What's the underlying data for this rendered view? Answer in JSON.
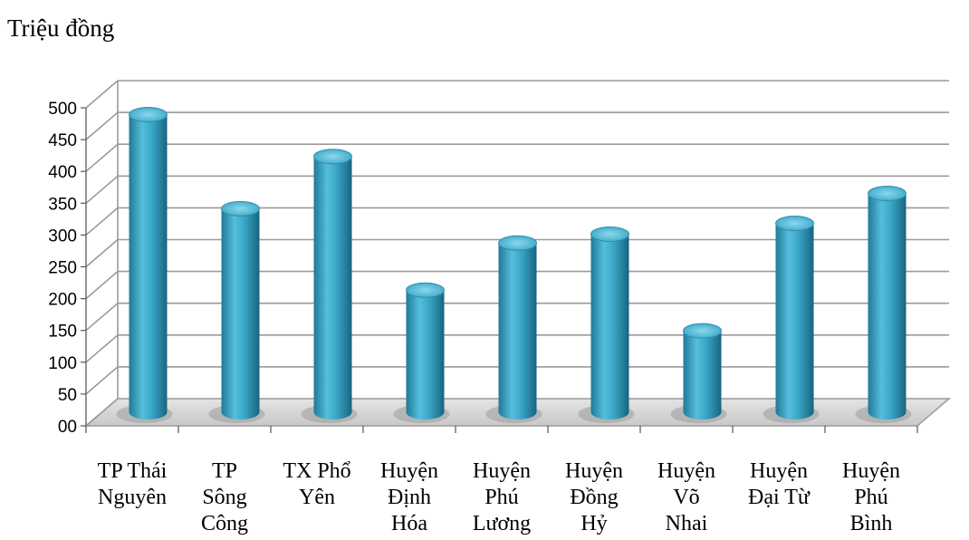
{
  "chart_data": {
    "type": "bar",
    "title": "",
    "xlabel": "",
    "ylabel": "Triệu đồng",
    "ylim": [
      0,
      500
    ],
    "ytick_labels": [
      "00",
      "50",
      "100",
      "150",
      "200",
      "250",
      "300",
      "350",
      "400",
      "450",
      "500"
    ],
    "categories": [
      [
        "TP Thái",
        "Nguyên"
      ],
      [
        "TP",
        "Sông",
        "Công"
      ],
      [
        "TX Phổ",
        "Yên"
      ],
      [
        "Huyện",
        "Định",
        "Hóa"
      ],
      [
        "Huyện",
        "Phú",
        "Lương"
      ],
      [
        "Huyện",
        "Đồng",
        "Hỷ"
      ],
      [
        "Huyện",
        "Võ",
        "Nhai"
      ],
      [
        "Huyện",
        "Đại Từ"
      ],
      [
        "Huyện",
        "Phú",
        "Bình"
      ]
    ],
    "values": [
      468,
      320,
      402,
      192,
      266,
      280,
      128,
      297,
      344
    ],
    "grid": true,
    "legend": "none",
    "bar_shape": "3d-cylinder",
    "bar_color": "#3aa6c6",
    "bar_color_dark": "#1b6e8a",
    "bar_color_light": "#7fd0e6",
    "grid_color": "#9a9a9a",
    "floor_color": "#d6d6d6"
  }
}
